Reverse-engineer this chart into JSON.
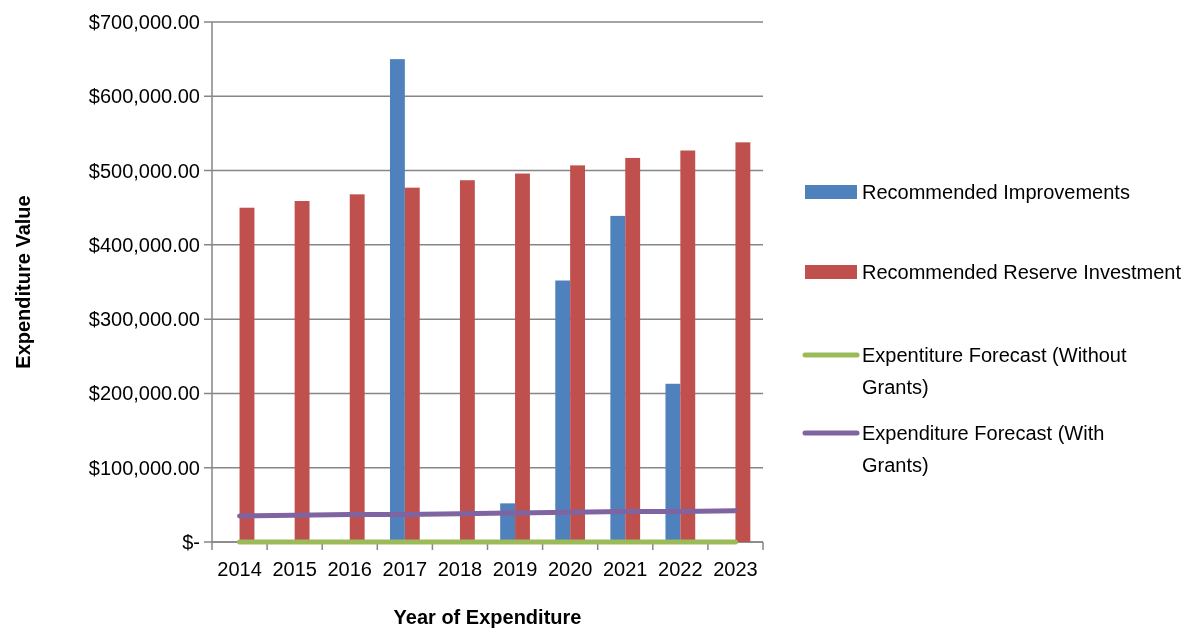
{
  "chart_data": {
    "type": "bar",
    "xlabel": "Year of Expenditure",
    "ylabel": "Expenditure Value",
    "categories": [
      "2014",
      "2015",
      "2016",
      "2017",
      "2018",
      "2019",
      "2020",
      "2021",
      "2022",
      "2023"
    ],
    "series": [
      {
        "name": "Recommended Improvements",
        "color": "#4f81bd",
        "values": [
          0,
          0,
          0,
          650000,
          0,
          52000,
          352000,
          439000,
          213000,
          0
        ]
      },
      {
        "name": "Recommended Reserve Investment",
        "color": "#c0504d",
        "values": [
          450000,
          459000,
          468000,
          477000,
          487000,
          496000,
          507000,
          517000,
          527000,
          538000
        ]
      },
      {
        "name": "Expentiture Forecast (Without Grants)",
        "type": "line",
        "color": "#9bbb59",
        "values": [
          0,
          0,
          0,
          0,
          0,
          0,
          0,
          0,
          0,
          0
        ]
      },
      {
        "name": "Expenditure Forecast (With Grants)",
        "type": "line",
        "color": "#8064a2",
        "values": [
          35000,
          36000,
          37000,
          37000,
          38000,
          39000,
          40000,
          41000,
          41000,
          42000
        ]
      }
    ],
    "ylim": [
      0,
      700000
    ],
    "yticks": [
      {
        "value": 0,
        "label": "$-"
      },
      {
        "value": 100000,
        "label": "$100,000.00"
      },
      {
        "value": 200000,
        "label": "$200,000.00"
      },
      {
        "value": 300000,
        "label": "$300,000.00"
      },
      {
        "value": 400000,
        "label": "$400,000.00"
      },
      {
        "value": 500000,
        "label": "$500,000.00"
      },
      {
        "value": 600000,
        "label": "$600,000.00"
      },
      {
        "value": 700000,
        "label": "$700,000.00"
      }
    ],
    "grid": "y",
    "legend": "right"
  }
}
